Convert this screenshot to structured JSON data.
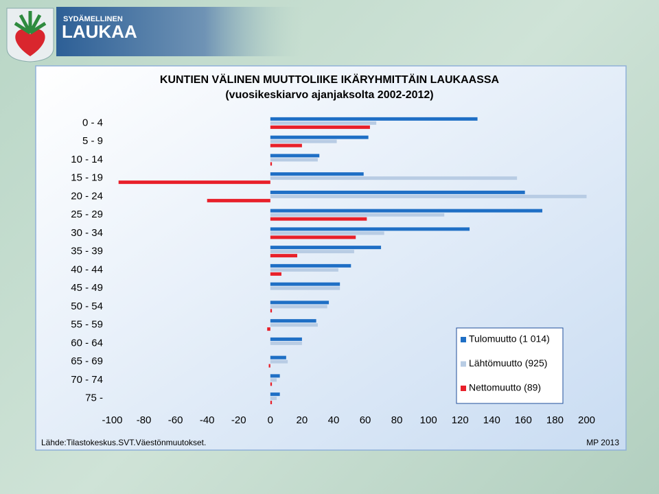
{
  "header": {
    "tagline": "SYDÄMELLINEN",
    "name": "LAUKAA"
  },
  "chart_data": {
    "type": "barh",
    "title": "KUNTIEN VÄLINEN MUUTTOLIIKE  IKÄRYHMITTÄIN  LAUKAASSA",
    "subtitle": "(vuosikeskiarvo  ajanjaksolta  2002-2012)",
    "categories": [
      "0 - 4",
      "5 - 9",
      "10 - 14",
      "15 - 19",
      "20 - 24",
      "25 - 29",
      "30 - 34",
      "35 - 39",
      "40 - 44",
      "45 - 49",
      "50 - 54",
      "55 - 59",
      "60 - 64",
      "65 - 69",
      "70 - 74",
      "75 -"
    ],
    "series": [
      {
        "name": "Tulomuutto (1 014)",
        "color": "#1f6fc5",
        "values": [
          131,
          62,
          31,
          59,
          161,
          172,
          126,
          70,
          51,
          44,
          37,
          29,
          20,
          10,
          6,
          6
        ]
      },
      {
        "name": "Lähtömuutto (925)",
        "color": "#b8cce4",
        "values": [
          67,
          42,
          30,
          156,
          200,
          110,
          72,
          53,
          43,
          44,
          36,
          30,
          20,
          11,
          4,
          4
        ]
      },
      {
        "name": "Nettomuutto (89)",
        "color": "#e8202a",
        "values": [
          63,
          20,
          1,
          -96,
          -40,
          61,
          54,
          17,
          7,
          0,
          1,
          -2,
          0,
          -1,
          1,
          1
        ]
      }
    ],
    "xlim": [
      -100,
      200
    ],
    "xticks": [
      -100,
      -80,
      -60,
      -40,
      -20,
      0,
      20,
      40,
      60,
      80,
      100,
      120,
      140,
      160,
      180,
      200
    ],
    "grid": false,
    "legend": "lower right"
  },
  "footer": {
    "source": "Lähde:Tilastokeskus.SVT.Väestönmuutokset.",
    "credit": "MP 2013"
  }
}
